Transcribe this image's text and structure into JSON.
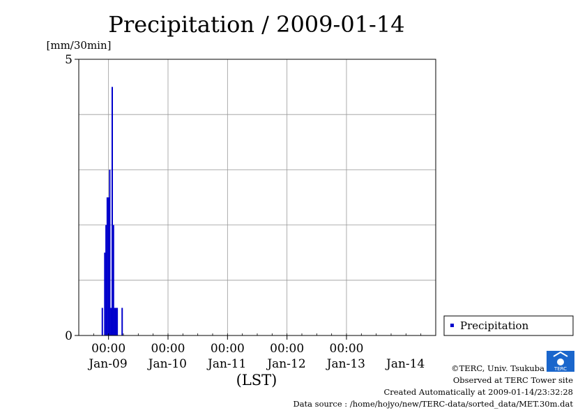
{
  "chart_data": {
    "type": "bar",
    "title": "Precipitation / 2009-01-14",
    "ylabel": "[mm/30min]",
    "xlabel": "(LST)",
    "ylim": [
      0,
      5
    ],
    "ytick_labels": [
      "0",
      "5"
    ],
    "xlim": [
      "2009-01-08T12:00",
      "2009-01-14T12:00"
    ],
    "xtick_labels": [
      {
        "time": "00:00",
        "date": "Jan-09"
      },
      {
        "time": "00:00",
        "date": "Jan-10"
      },
      {
        "time": "00:00",
        "date": "Jan-11"
      },
      {
        "time": "00:00",
        "date": "Jan-12"
      },
      {
        "time": "00:00",
        "date": "Jan-13"
      },
      {
        "time": "",
        "date": "Jan-14"
      }
    ],
    "grid": true,
    "legend_position": "right",
    "series": [
      {
        "name": "Precipitation",
        "color": "#0000cc",
        "x": [
          "2009-01-08T21:30",
          "2009-01-08T22:30",
          "2009-01-08T23:00",
          "2009-01-08T23:30",
          "2009-01-09T00:00",
          "2009-01-09T00:30",
          "2009-01-09T01:00",
          "2009-01-09T01:30",
          "2009-01-09T02:00",
          "2009-01-09T02:30",
          "2009-01-09T03:00",
          "2009-01-09T03:30",
          "2009-01-09T05:30"
        ],
        "values": [
          0.5,
          1.5,
          2.0,
          2.5,
          2.5,
          3.0,
          0.5,
          4.5,
          2.0,
          0.5,
          0.5,
          0.5,
          0.5
        ]
      }
    ]
  },
  "footer": {
    "copyright": "©TERC, Univ. Tsukuba",
    "site": "Observed at TERC Tower site",
    "created": "Created Automatically at 2009-01-14/23:32:28",
    "source": "Data source : /home/hojyo/new/TERC-data/sorted_data/MET.30m.dat",
    "logo_text": "TERC"
  }
}
